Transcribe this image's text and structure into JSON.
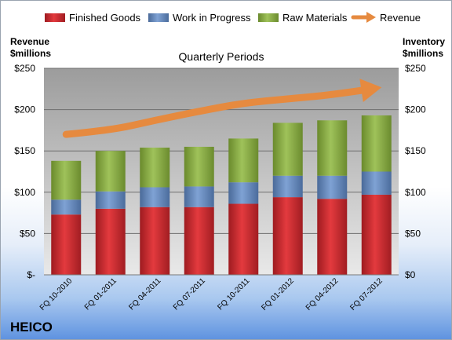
{
  "chart_data": {
    "type": "bar",
    "stacked": true,
    "title": "Quarterly Periods",
    "ylabel_left": "Revenue $millions",
    "ylabel_right": "Inventory $millions",
    "ylim": [
      0,
      250
    ],
    "y_ticks_left": [
      "$-",
      "$50",
      "$100",
      "$150",
      "$200",
      "$250"
    ],
    "y_ticks_right": [
      "$0",
      "$50",
      "$100",
      "$150",
      "$200",
      "$250"
    ],
    "categories": [
      "FQ 10-2010",
      "FQ 01-2011",
      "FQ 04-2011",
      "FQ 07-2011",
      "FQ 10-2011",
      "FQ 01-2012",
      "FQ 04-2012",
      "FQ 07-2012"
    ],
    "series": [
      {
        "name": "Finished Goods",
        "color": "#c0262b",
        "values": [
          73,
          80,
          82,
          82,
          86,
          94,
          92,
          97
        ]
      },
      {
        "name": "Work in Progress",
        "color": "#5a7fb5",
        "values": [
          18,
          21,
          24,
          25,
          26,
          26,
          28,
          28
        ]
      },
      {
        "name": "Raw Materials",
        "color": "#7f9f3b",
        "values": [
          47,
          49,
          48,
          48,
          53,
          64,
          67,
          68
        ]
      }
    ],
    "line_series": {
      "name": "Revenue",
      "color": "#e68a3f",
      "values": [
        170,
        175,
        187,
        198,
        208,
        213,
        218,
        226
      ]
    },
    "grid": true,
    "legend": "top"
  },
  "company": "HEICO"
}
